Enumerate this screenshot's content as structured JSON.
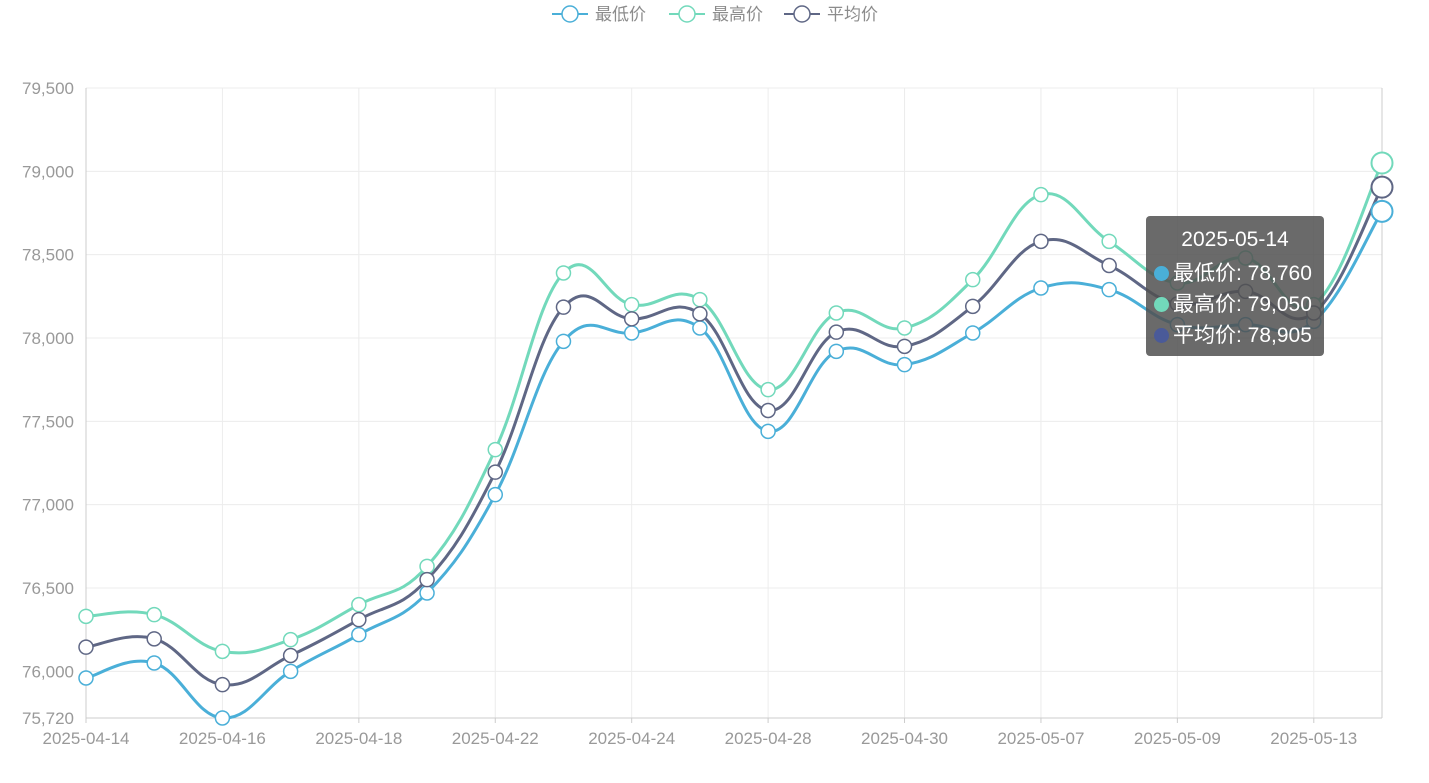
{
  "chart_data": {
    "type": "line",
    "title": "",
    "xlabel": "",
    "ylabel": "",
    "smooth": true,
    "grid": true,
    "legend_position": "top-center",
    "ylim": [
      75720,
      79500
    ],
    "y_ticks": [
      "75,720",
      "76,000",
      "76,500",
      "77,000",
      "77,500",
      "78,000",
      "78,500",
      "79,000",
      "79,500"
    ],
    "y_tick_values": [
      75720,
      76000,
      76500,
      77000,
      77500,
      78000,
      78500,
      79000,
      79500
    ],
    "x": [
      "2025-04-14",
      "2025-04-15",
      "2025-04-16",
      "2025-04-17",
      "2025-04-18",
      "2025-04-21",
      "2025-04-22",
      "2025-04-23",
      "2025-04-24",
      "2025-04-25",
      "2025-04-28",
      "2025-04-29",
      "2025-04-30",
      "2025-05-06",
      "2025-05-07",
      "2025-05-08",
      "2025-05-09",
      "2025-05-12",
      "2025-05-13",
      "2025-05-14"
    ],
    "x_tick_labels": [
      "2025-04-14",
      "2025-04-16",
      "2025-04-18",
      "2025-04-22",
      "2025-04-24",
      "2025-04-28",
      "2025-04-30",
      "2025-05-07",
      "2025-05-09",
      "2025-05-13"
    ],
    "series": [
      {
        "name": "最低价",
        "color": "#4aafd8",
        "values": [
          75960,
          76050,
          75720,
          76000,
          76220,
          76470,
          77060,
          77980,
          78030,
          78060,
          77440,
          77920,
          77840,
          78030,
          78300,
          78290,
          78080,
          78080,
          78100,
          78760
        ]
      },
      {
        "name": "最高价",
        "color": "#72d9bb",
        "values": [
          76330,
          76340,
          76120,
          76190,
          76400,
          76630,
          77330,
          78390,
          78200,
          78230,
          77690,
          78150,
          78060,
          78350,
          78860,
          78580,
          78330,
          78480,
          78200,
          79050
        ]
      },
      {
        "name": "平均价",
        "color": "#5f6785",
        "values": [
          76145,
          76195,
          75920,
          76095,
          76310,
          76550,
          77195,
          78185,
          78115,
          78145,
          77565,
          78035,
          77950,
          78190,
          78580,
          78435,
          78205,
          78280,
          78150,
          78905
        ]
      }
    ]
  },
  "tooltip": {
    "title": "2025-05-14",
    "rows": [
      {
        "label": "最低价",
        "value": "78,760",
        "color": "#4aafd8"
      },
      {
        "label": "最高价",
        "value": "79,050",
        "color": "#72d9bb"
      },
      {
        "label": "平均价",
        "value": "78,905",
        "color": "#4a5a99"
      }
    ]
  }
}
